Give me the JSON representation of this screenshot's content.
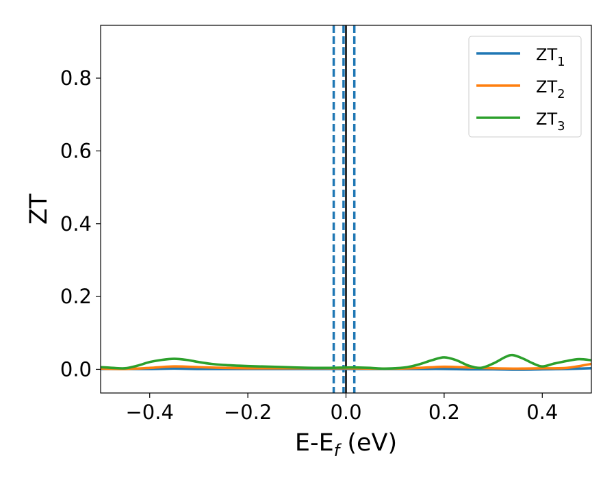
{
  "chart_data": {
    "type": "line",
    "xlabel": "E-E",
    "xlabel_sub": "f",
    "xlabel_unit": " (eV)",
    "ylabel": "ZT",
    "xlim": [
      -0.5,
      0.5
    ],
    "ylim": [
      -0.065,
      0.945
    ],
    "x_ticks": [
      -0.4,
      -0.2,
      0.0,
      0.2,
      0.4
    ],
    "x_tick_labels": [
      "−0.4",
      "−0.2",
      "0.0",
      "0.2",
      "0.4"
    ],
    "y_ticks": [
      0.0,
      0.2,
      0.4,
      0.6,
      0.8
    ],
    "y_tick_labels": [
      "0.0",
      "0.2",
      "0.4",
      "0.6",
      "0.8"
    ],
    "grid": false,
    "legend_position": "upper-right",
    "vertical_lines": [
      {
        "x": -0.025,
        "style": "dashed",
        "color": "#1f77b4"
      },
      {
        "x": -0.005,
        "style": "dashed",
        "color": "#1f77b4"
      },
      {
        "x": 0.0,
        "style": "solid",
        "color": "#000000"
      },
      {
        "x": 0.017,
        "style": "dashed",
        "color": "#1f77b4"
      }
    ],
    "series": [
      {
        "name": "ZT",
        "sub": "1",
        "color": "#1f77b4",
        "x": [
          -0.5,
          -0.45,
          -0.4,
          -0.35,
          -0.3,
          -0.25,
          -0.2,
          -0.15,
          -0.1,
          -0.05,
          0.0,
          0.05,
          0.1,
          0.15,
          0.2,
          0.25,
          0.3,
          0.35,
          0.4,
          0.45,
          0.5
        ],
        "y": [
          0.001,
          0.001,
          0.001,
          0.002,
          0.001,
          0.001,
          0.001,
          0.001,
          0.001,
          0.001,
          0.001,
          0.001,
          0.001,
          0.001,
          0.001,
          0.0,
          0.0,
          -0.001,
          0.0,
          0.001,
          0.003
        ]
      },
      {
        "name": "ZT",
        "sub": "2",
        "color": "#ff7f0e",
        "x": [
          -0.5,
          -0.45,
          -0.4,
          -0.35,
          -0.3,
          -0.25,
          -0.2,
          -0.15,
          -0.1,
          -0.05,
          0.0,
          0.05,
          0.1,
          0.15,
          0.2,
          0.25,
          0.3,
          0.35,
          0.4,
          0.45,
          0.5
        ],
        "y": [
          0.002,
          0.001,
          0.004,
          0.008,
          0.006,
          0.004,
          0.003,
          0.003,
          0.003,
          0.003,
          0.003,
          0.002,
          0.002,
          0.004,
          0.007,
          0.005,
          0.003,
          0.002,
          0.003,
          0.004,
          0.015
        ]
      },
      {
        "name": "ZT",
        "sub": "3",
        "color": "#2ca02c",
        "x": [
          -0.5,
          -0.475,
          -0.45,
          -0.425,
          -0.4,
          -0.375,
          -0.35,
          -0.325,
          -0.3,
          -0.275,
          -0.25,
          -0.2,
          -0.15,
          -0.1,
          -0.05,
          0.0,
          0.025,
          0.05,
          0.075,
          0.1,
          0.125,
          0.15,
          0.175,
          0.2,
          0.225,
          0.25,
          0.275,
          0.3,
          0.325,
          0.34,
          0.36,
          0.38,
          0.4,
          0.425,
          0.45,
          0.475,
          0.5
        ],
        "y": [
          0.006,
          0.004,
          0.003,
          0.01,
          0.02,
          0.026,
          0.029,
          0.026,
          0.02,
          0.015,
          0.012,
          0.009,
          0.007,
          0.005,
          0.004,
          0.005,
          0.005,
          0.004,
          0.002,
          0.003,
          0.006,
          0.014,
          0.025,
          0.033,
          0.025,
          0.01,
          0.004,
          0.016,
          0.034,
          0.039,
          0.03,
          0.017,
          0.008,
          0.016,
          0.023,
          0.028,
          0.025
        ]
      }
    ]
  }
}
